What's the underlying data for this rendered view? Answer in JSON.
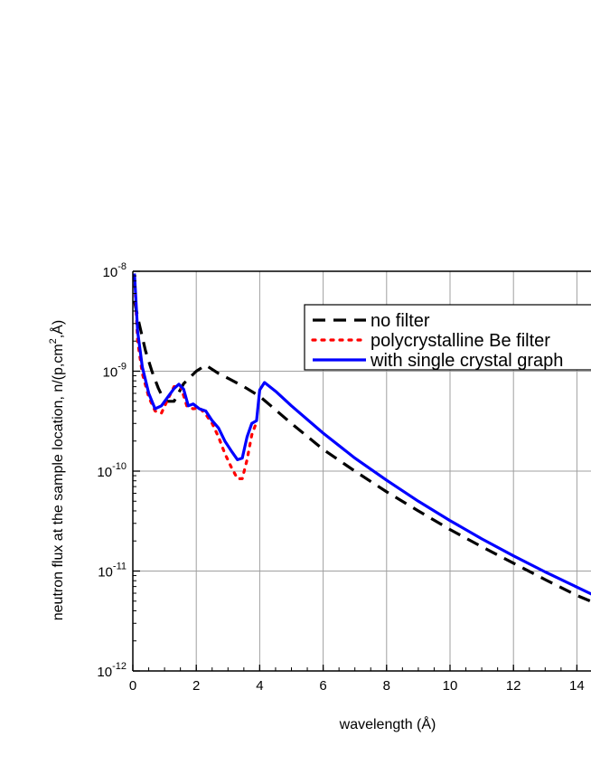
{
  "chart_data": {
    "type": "line",
    "title": "",
    "xlabel": "wavelength (Å)",
    "ylabel": "neutron flux at the sample location, n/(p,cm",
    "ylabel_sup": "2",
    "ylabel_end": ",Å)",
    "xlim": [
      0,
      14.7
    ],
    "ylim_log10": [
      -12,
      -8
    ],
    "y_scale": "log",
    "grid": true,
    "legend_position": "top-right",
    "x_ticks": [
      {
        "value": 0,
        "label": "0"
      },
      {
        "value": 2,
        "label": "2"
      },
      {
        "value": 4,
        "label": "4"
      },
      {
        "value": 6,
        "label": "6"
      },
      {
        "value": 8,
        "label": "8"
      },
      {
        "value": 10,
        "label": "10"
      },
      {
        "value": 12,
        "label": "12"
      },
      {
        "value": 14,
        "label": "14"
      }
    ],
    "y_ticks": [
      {
        "exp": -12,
        "base": "10",
        "sup": "-12"
      },
      {
        "exp": -11,
        "base": "10",
        "sup": "-11"
      },
      {
        "exp": -10,
        "base": "10",
        "sup": "-10"
      },
      {
        "exp": -9,
        "base": "10",
        "sup": "-9"
      },
      {
        "exp": -8,
        "base": "10",
        "sup": "-8"
      }
    ],
    "series": [
      {
        "name": "no filter",
        "color": "#000000",
        "style": "dashed",
        "x": [
          0.05,
          0.2,
          0.4,
          0.6,
          0.8,
          1.0,
          1.3,
          1.6,
          2.0,
          2.3,
          2.7,
          3.0,
          3.5,
          4.0,
          5.0,
          6.0,
          7.0,
          8.0,
          9.0,
          10.0,
          11.0,
          12.0,
          13.0,
          14.0,
          14.7
        ],
        "y": [
          5e-09,
          3e-09,
          1.6e-09,
          1e-09,
          6.8e-10,
          5e-10,
          5e-10,
          7.5e-10,
          1e-09,
          1.15e-09,
          9.5e-10,
          8.5e-10,
          7e-10,
          5.6e-10,
          3e-10,
          1.65e-10,
          1e-10,
          6.2e-11,
          4e-11,
          2.6e-11,
          1.75e-11,
          1.2e-11,
          8.2e-12,
          5.7e-12,
          4.6e-12
        ]
      },
      {
        "name": "polycrystalline Be filter",
        "color": "#ff0000",
        "style": "dotted",
        "x": [
          0.05,
          0.15,
          0.3,
          0.5,
          0.7,
          0.9,
          1.1,
          1.3,
          1.5,
          1.7,
          1.9,
          2.1,
          2.3,
          2.5,
          2.7,
          2.9,
          3.1,
          3.3,
          3.45,
          3.6,
          3.75,
          3.9
        ],
        "y": [
          9e-09,
          2e-09,
          9.5e-10,
          5.5e-10,
          4e-10,
          3.8e-10,
          5.2e-10,
          7e-10,
          7.2e-10,
          4.5e-10,
          4.2e-10,
          4.3e-10,
          3.7e-10,
          3e-10,
          2.2e-10,
          1.5e-10,
          1.1e-10,
          8.4e-11,
          8.4e-11,
          1.3e-10,
          2.3e-10,
          3.1e-10
        ]
      },
      {
        "name": "with single crystal graph",
        "color": "#0000ff",
        "style": "solid",
        "x": [
          0.05,
          0.15,
          0.3,
          0.5,
          0.7,
          0.9,
          1.1,
          1.3,
          1.45,
          1.6,
          1.75,
          1.9,
          2.1,
          2.3,
          2.5,
          2.7,
          2.9,
          3.1,
          3.3,
          3.45,
          3.6,
          3.75,
          3.9,
          4.0,
          4.15,
          4.5,
          5.0,
          6.0,
          7.0,
          8.0,
          9.0,
          10.0,
          11.0,
          12.0,
          13.0,
          14.0,
          14.7
        ],
        "y": [
          9.5e-09,
          2.5e-09,
          1.1e-09,
          6e-10,
          4.2e-10,
          4.5e-10,
          5.5e-10,
          6.7e-10,
          7.4e-10,
          6.6e-10,
          4.5e-10,
          4.7e-10,
          4.2e-10,
          4e-10,
          3.2e-10,
          2.7e-10,
          2e-10,
          1.6e-10,
          1.3e-10,
          1.35e-10,
          2.2e-10,
          3e-10,
          3.2e-10,
          6.5e-10,
          7.7e-10,
          6.3e-10,
          4.5e-10,
          2.4e-10,
          1.35e-10,
          8.1e-11,
          5e-11,
          3.2e-11,
          2.1e-11,
          1.42e-11,
          9.8e-12,
          6.9e-12,
          5.4e-12
        ]
      }
    ]
  }
}
